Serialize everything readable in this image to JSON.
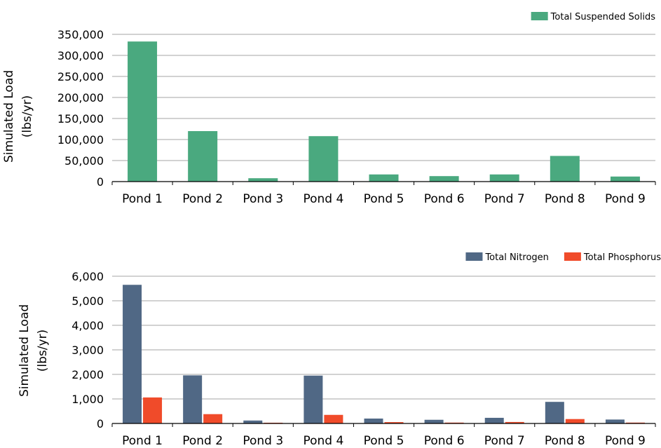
{
  "chart_data": [
    {
      "type": "bar",
      "categories": [
        "Pond 1",
        "Pond 2",
        "Pond 3",
        "Pond 4",
        "Pond 5",
        "Pond 6",
        "Pond 7",
        "Pond 8",
        "Pond 9"
      ],
      "series": [
        {
          "name": "Total Suspended Solids",
          "color": "#4aa97f",
          "values": [
            333000,
            120000,
            8000,
            108000,
            17000,
            13000,
            17000,
            61000,
            12000
          ]
        }
      ],
      "ylabel_line1": "Simulated Load",
      "ylabel_line2": "(lbs/yr)",
      "ylim": [
        0,
        350000
      ],
      "yticks": [
        0,
        50000,
        100000,
        150000,
        200000,
        250000,
        300000,
        350000
      ],
      "ytick_labels": [
        "0",
        "50,000",
        "100,000",
        "150,000",
        "200,000",
        "250,000",
        "300,000",
        "350,000"
      ],
      "grid": true,
      "legend": "top-right"
    },
    {
      "type": "bar",
      "categories": [
        "Pond 1",
        "Pond 2",
        "Pond 3",
        "Pond 4",
        "Pond 5",
        "Pond 6",
        "Pond 7",
        "Pond 8",
        "Pond 9"
      ],
      "series": [
        {
          "name": "Total Nitrogen",
          "color": "#506885",
          "values": [
            5650,
            1960,
            120,
            1950,
            200,
            150,
            230,
            880,
            160
          ]
        },
        {
          "name": "Total Phosphorus",
          "color": "#f04b2a",
          "values": [
            1060,
            380,
            30,
            350,
            55,
            35,
            60,
            180,
            35
          ]
        }
      ],
      "ylabel_line1": "Simulated Load",
      "ylabel_line2": "(lbs/yr)",
      "ylim": [
        0,
        6000
      ],
      "yticks": [
        0,
        1000,
        2000,
        3000,
        4000,
        5000,
        6000
      ],
      "ytick_labels": [
        "0",
        "1,000",
        "2,000",
        "3,000",
        "4,000",
        "5,000",
        "6,000"
      ],
      "grid": true,
      "legend": "top-right"
    }
  ]
}
